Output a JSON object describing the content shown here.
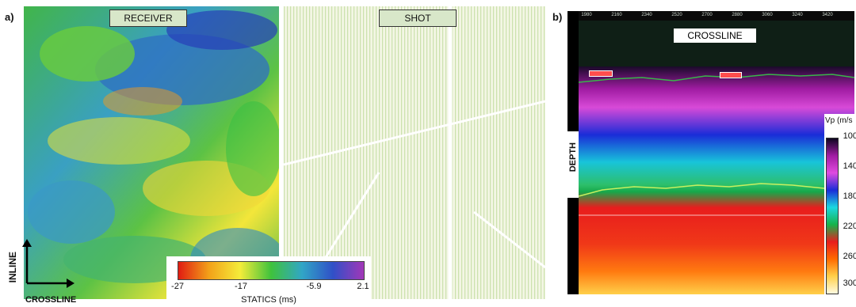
{
  "panel_a_label": "a)",
  "panel_b_label": "b)",
  "receiver_label": "RECEIVER",
  "shot_label": "SHOT",
  "axis_inline": "INLINE",
  "axis_crossline": "CROSSLINE",
  "statics_colorbar": {
    "title": "STATICS (ms)",
    "ticks": [
      "-27",
      "-17",
      "-5.9",
      "2.1"
    ],
    "colors": [
      "#e01c12",
      "#f3a219",
      "#f4ec3a",
      "#3fc23c",
      "#31a6c6",
      "#3050c7",
      "#a237b8"
    ]
  },
  "section": {
    "title": "CROSSLINE",
    "depth_label": "DEPTH",
    "top_ticks": [
      "1980",
      "2160",
      "2340",
      "2520",
      "2700",
      "2880",
      "3060",
      "3240",
      "3420"
    ],
    "colors": {
      "background": "#0f1f16",
      "horizon": "#39b54a",
      "marker": "#ff4d4d"
    }
  },
  "vp_colorbar": {
    "title": "Vp (m/s",
    "ticks": [
      "100",
      "140",
      "180",
      "220",
      "260",
      "300"
    ],
    "colors": [
      "#0d0620",
      "#a11ca3",
      "#e04be0",
      "#1a2cd8",
      "#1ad8e0",
      "#16b34a",
      "#e81d1d",
      "#ff6a00",
      "#ffd04a",
      "#fffbe0"
    ]
  }
}
